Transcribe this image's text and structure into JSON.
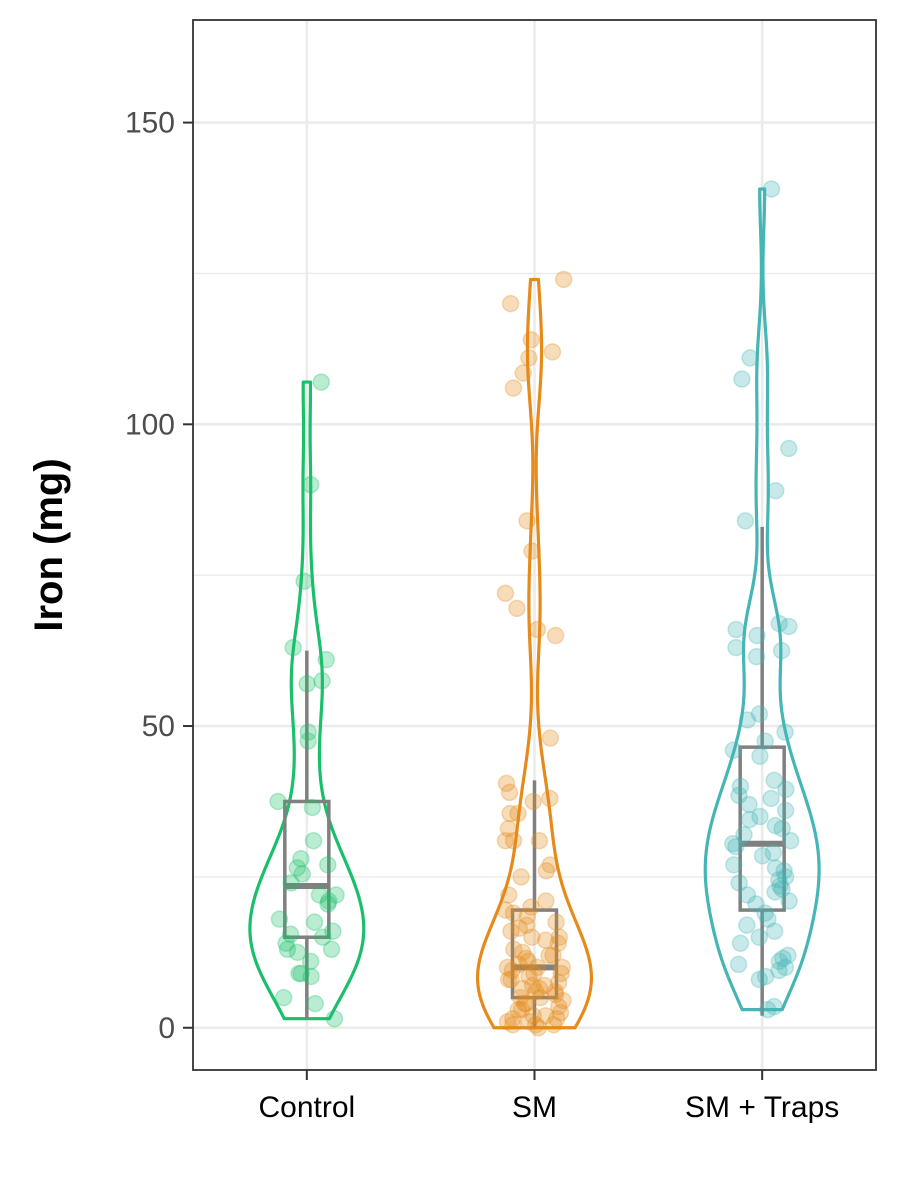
{
  "chart_data": {
    "type": "violin",
    "ylabel": "Iron (mg)",
    "xlabel": "",
    "categories": [
      "Control",
      "SM",
      "SM + Traps"
    ],
    "ylim": [
      -7,
      167
    ],
    "yticks": [
      0,
      50,
      100,
      150
    ],
    "grid": true,
    "legend": "none",
    "colors": {
      "Control": "#1abf6b",
      "SM": "#e68a1a",
      "SM + Traps": "#45b5b5",
      "box": "#808080"
    },
    "series": [
      {
        "category": "Control",
        "box": {
          "min": 1.5,
          "q1": 15,
          "median": 23.5,
          "q3": 37.5,
          "max": 62.5
        },
        "violin_max": 107,
        "points": [
          107,
          90,
          74,
          63,
          61,
          57.5,
          57,
          49,
          47.5,
          37.5,
          36.5,
          31,
          28,
          27,
          26.5,
          25.5,
          24,
          22,
          22,
          21,
          20.5,
          18,
          17.5,
          16,
          15.5,
          15,
          14,
          13,
          13,
          12.5,
          11,
          9,
          9,
          8.5,
          5,
          4,
          1.5
        ]
      },
      {
        "category": "SM",
        "box": {
          "min": 0,
          "q1": 5,
          "median": 10,
          "q3": 19.5,
          "max": 41
        },
        "violin_max": 123.5,
        "points": [
          124,
          120,
          114,
          112,
          111,
          108.5,
          106,
          84,
          79,
          72,
          69.5,
          66,
          65,
          48,
          40.5,
          39,
          38,
          37.5,
          35.5,
          35.5,
          33,
          31,
          31,
          31,
          27,
          26,
          25,
          22,
          21,
          20,
          19.5,
          19,
          18.5,
          17.5,
          17,
          16.5,
          16,
          15,
          15,
          14.5,
          14,
          13,
          12.5,
          12,
          12,
          11.5,
          11,
          10.5,
          10,
          10,
          10,
          9.5,
          9,
          9,
          8.5,
          8,
          8,
          7.5,
          7,
          7,
          6.5,
          6.5,
          6,
          6,
          5.5,
          5,
          5,
          4.5,
          4,
          4,
          3.5,
          3,
          3,
          2.5,
          2,
          2,
          1.5,
          1.5,
          1,
          1,
          0.5,
          0.5,
          0.5,
          0
        ]
      },
      {
        "category": "SM + Traps",
        "box": {
          "min": 2,
          "q1": 19.5,
          "median": 30.5,
          "q3": 46.5,
          "max": 83
        },
        "violin_max": 138.5,
        "points": [
          139,
          111,
          107.5,
          96,
          89,
          84,
          67,
          66.5,
          66,
          65,
          63,
          62.5,
          61.5,
          52,
          51,
          49,
          47.5,
          46,
          45,
          41,
          40,
          39.5,
          38.5,
          38,
          37,
          36,
          35,
          34.5,
          33.5,
          33,
          32,
          31,
          30.5,
          30,
          29,
          28.5,
          27,
          26.5,
          26,
          25,
          24.5,
          24,
          23.5,
          23,
          22.5,
          22,
          21,
          20.5,
          19,
          18,
          17,
          16,
          15,
          14,
          12,
          11.5,
          11,
          10.5,
          10,
          9.5,
          8.5,
          8,
          3.5,
          3
        ]
      }
    ]
  }
}
